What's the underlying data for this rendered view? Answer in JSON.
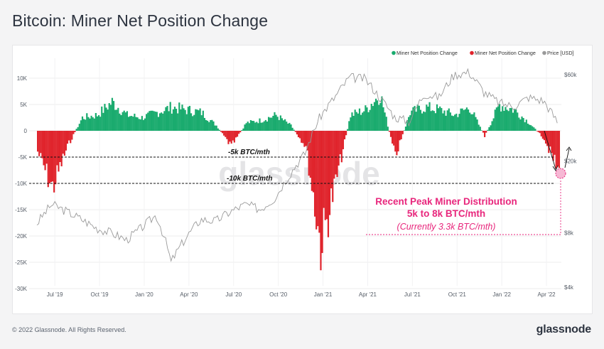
{
  "title": "Bitcoin: Miner Net Position Change",
  "footer": "© 2022 Glassnode. All Rights Reserved.",
  "brand": "glassnode",
  "watermark": "glassnode",
  "colors": {
    "positive": "#1aab6e",
    "negative": "#e0242c",
    "price": "#9a9a9a",
    "highlight": "#e8267c",
    "title": "#2d3440"
  },
  "chart_data": {
    "type": "bar",
    "title": "Bitcoin: Miner Net Position Change",
    "legend": {
      "placement": "top-right",
      "items": [
        {
          "label": "Miner Net Position Change",
          "color": "#1aab6e"
        },
        {
          "label": "Miner Net Position Change",
          "color": "#e0242c"
        },
        {
          "label": "Price [USD]",
          "color": "#9a9a9a"
        }
      ]
    },
    "x_ticks": [
      "Jul '19",
      "Oct '19",
      "Jan '20",
      "Apr '20",
      "Jul '20",
      "Oct '20",
      "Jan '21",
      "Apr '21",
      "Jul '21",
      "Oct '21",
      "Jan '22",
      "Apr '22"
    ],
    "y_left": {
      "ticks": [
        "10K",
        "5K",
        "0",
        "-5K",
        "-10K",
        "-15K",
        "-20K",
        "-25K",
        "-30K"
      ],
      "range": [
        -30000,
        12000
      ]
    },
    "y_right": {
      "ticks": [
        "$60k",
        "$20k",
        "$8k",
        "$4k"
      ],
      "scale": "log",
      "range": [
        4000,
        70000
      ]
    },
    "grid": true,
    "series": [
      {
        "name": "Miner Net Position Change",
        "unit": "BTC/month",
        "x": [
          "Jun 2019",
          "Jul 2019",
          "Aug 2019",
          "Sep 2019",
          "Oct 2019",
          "Nov 2019",
          "Dec 2019",
          "Jan 2020",
          "Feb 2020",
          "Mar 2020",
          "Apr 2020",
          "May 2020",
          "Jun 2020",
          "Jul 2020",
          "Aug 2020",
          "Sep 2020",
          "Oct 2020",
          "Nov 2020",
          "Dec 2020",
          "Jan 2021",
          "Feb 2021",
          "Mar 2021",
          "Apr 2021",
          "May 2021",
          "Jun 2021",
          "Jul 2021",
          "Aug 2021",
          "Sep 2021",
          "Oct 2021",
          "Nov 2021",
          "Dec 2021",
          "Jan 2022",
          "Feb 2022",
          "Mar 2022",
          "Apr 2022",
          "May 2022",
          "Jun 2022"
        ],
        "values": [
          -4000,
          -11000,
          -3000,
          2500,
          3000,
          5500,
          3000,
          2500,
          3500,
          4500,
          4000,
          3500,
          1000,
          -3000,
          1500,
          2000,
          3000,
          1000,
          -3000,
          -22000,
          -10000,
          3000,
          4000,
          7000,
          -5000,
          3500,
          4500,
          4000,
          3000,
          4500,
          -1000,
          5000,
          4000,
          1500,
          -1500,
          -8000,
          -3300
        ]
      },
      {
        "name": "Price [USD]",
        "unit": "USD",
        "x": [
          "Jun 2019",
          "Jul 2019",
          "Aug 2019",
          "Sep 2019",
          "Oct 2019",
          "Nov 2019",
          "Dec 2019",
          "Jan 2020",
          "Feb 2020",
          "Mar 2020",
          "Apr 2020",
          "May 2020",
          "Jun 2020",
          "Jul 2020",
          "Aug 2020",
          "Sep 2020",
          "Oct 2020",
          "Nov 2020",
          "Dec 2020",
          "Jan 2021",
          "Feb 2021",
          "Mar 2021",
          "Apr 2021",
          "May 2021",
          "Jun 2021",
          "Jul 2021",
          "Aug 2021",
          "Sep 2021",
          "Oct 2021",
          "Nov 2021",
          "Dec 2021",
          "Jan 2022",
          "Feb 2022",
          "Mar 2022",
          "Apr 2022",
          "May 2022",
          "Jun 2022"
        ],
        "values": [
          9000,
          11500,
          10500,
          9500,
          8500,
          8000,
          7300,
          8500,
          10000,
          5500,
          7500,
          9500,
          9300,
          10500,
          11500,
          10800,
          12500,
          17000,
          22000,
          35000,
          45000,
          58000,
          57000,
          45000,
          35000,
          33000,
          47000,
          45000,
          60000,
          62000,
          48000,
          42000,
          40000,
          45000,
          43000,
          32000,
          21000
        ]
      }
    ],
    "annotations": {
      "line_5k": {
        "label": "-5k BTC/mth",
        "value": -5000
      },
      "line_10k": {
        "label": "-10k BTC/mth",
        "value": -10000
      },
      "callout_title": "Recent Peak Miner Distribution",
      "callout_range": "5k to 8k BTC/mth",
      "callout_current": "(Currently 3.3k BTC/mth)"
    }
  }
}
